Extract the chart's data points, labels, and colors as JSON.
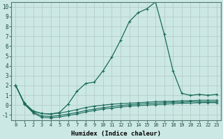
{
  "xlabel": "Humidex (Indice chaleur)",
  "background_color": "#cce8e4",
  "grid_color": "#b0c8c4",
  "line_color": "#1a6b5a",
  "x": [
    0,
    1,
    2,
    3,
    4,
    5,
    6,
    7,
    8,
    9,
    10,
    11,
    12,
    13,
    14,
    15,
    16,
    17,
    18,
    19,
    20,
    21,
    22,
    23
  ],
  "series_main": [
    2.0,
    0.2,
    -0.6,
    -0.85,
    -0.9,
    -0.75,
    0.1,
    1.4,
    2.2,
    2.35,
    3.5,
    4.9,
    6.6,
    8.5,
    9.4,
    9.8,
    10.5,
    7.2,
    3.5,
    1.2,
    1.0,
    1.1,
    1.0,
    1.1
  ],
  "series1": [
    2.0,
    0.2,
    -0.6,
    -0.85,
    -0.9,
    -0.8,
    -0.65,
    -0.45,
    -0.25,
    -0.1,
    0.0,
    0.1,
    0.15,
    0.2,
    0.25,
    0.3,
    0.35,
    0.4,
    0.4,
    0.45,
    0.45,
    0.5,
    0.5,
    0.5
  ],
  "series2": [
    2.0,
    0.15,
    -0.7,
    -1.1,
    -1.15,
    -1.05,
    -0.9,
    -0.75,
    -0.55,
    -0.4,
    -0.25,
    -0.15,
    -0.05,
    0.05,
    0.1,
    0.15,
    0.2,
    0.25,
    0.3,
    0.3,
    0.35,
    0.35,
    0.35,
    0.35
  ],
  "series3": [
    2.0,
    0.1,
    -0.8,
    -1.25,
    -1.3,
    -1.2,
    -1.05,
    -0.9,
    -0.7,
    -0.55,
    -0.4,
    -0.3,
    -0.2,
    -0.1,
    -0.05,
    0.0,
    0.05,
    0.1,
    0.15,
    0.2,
    0.2,
    0.25,
    0.25,
    0.25
  ],
  "ylim": [
    -1.5,
    10.5
  ],
  "xlim": [
    -0.5,
    23.5
  ],
  "yticks": [
    -1,
    0,
    1,
    2,
    3,
    4,
    5,
    6,
    7,
    8,
    9,
    10
  ],
  "xticks": [
    0,
    1,
    2,
    3,
    4,
    5,
    6,
    7,
    8,
    9,
    10,
    11,
    12,
    13,
    14,
    15,
    16,
    17,
    18,
    19,
    20,
    21,
    22,
    23
  ]
}
